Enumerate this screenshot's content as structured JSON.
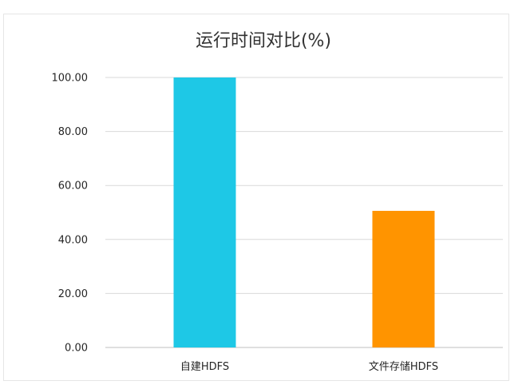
{
  "chart_data": {
    "type": "bar",
    "title": "运行时间对比(%)",
    "xlabel": "",
    "ylabel": "",
    "categories": [
      "自建HDFS",
      "文件存储HDFS"
    ],
    "values": [
      100.0,
      50.6
    ],
    "colors": [
      "#1ec8e6",
      "#ff9400"
    ],
    "ylim": [
      0,
      100
    ],
    "yticks": [
      0,
      20,
      40,
      60,
      80,
      100
    ],
    "ytick_labels": [
      "0.00",
      "20.00",
      "40.00",
      "60.00",
      "80.00",
      "100.00"
    ],
    "grid": true,
    "legend": "none"
  }
}
